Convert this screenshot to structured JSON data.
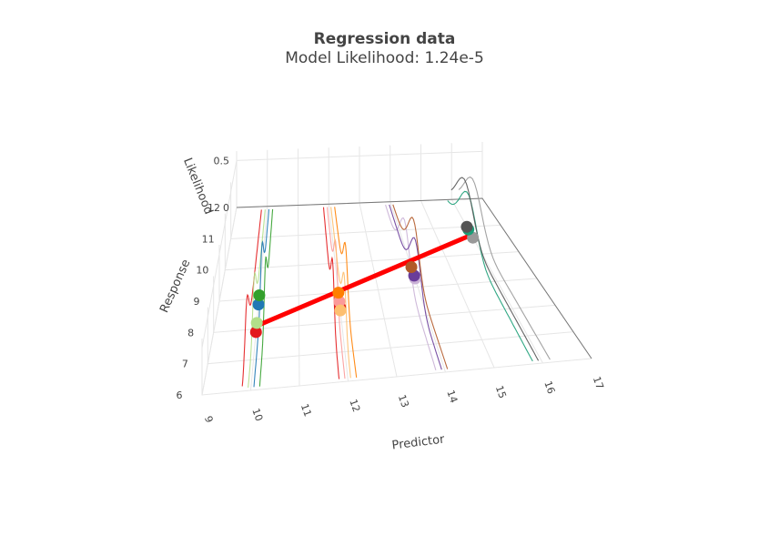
{
  "chart_data": {
    "type": "scatter",
    "title": "Regression data",
    "subtitle": "Model Likelihood: 1.24e-5",
    "xlabel": "Predictor",
    "ylabel": "Response",
    "zlabel": "Likelihood",
    "x_ticks": [
      "9",
      "10",
      "11",
      "12",
      "13",
      "14",
      "15",
      "16",
      "17"
    ],
    "y_ticks": [
      "6",
      "7",
      "8",
      "9",
      "10",
      "11",
      "12"
    ],
    "z_ticks": [
      "0",
      "0.5"
    ],
    "xlim": [
      9,
      17
    ],
    "ylim": [
      6,
      12
    ],
    "zlim": [
      0,
      0.6
    ],
    "regression_line": {
      "color": "#ff0000",
      "x": [
        10,
        16
      ],
      "y": [
        8.1,
        10.7
      ]
    },
    "points": [
      {
        "x": 10,
        "y": 7.9,
        "color": "#e31a1c"
      },
      {
        "x": 10,
        "y": 8.2,
        "color": "#b2df8a"
      },
      {
        "x": 10,
        "y": 8.8,
        "color": "#1f78b4"
      },
      {
        "x": 10,
        "y": 9.1,
        "color": "#33a02c"
      },
      {
        "x": 12,
        "y": 8.5,
        "color": "#e31a1c"
      },
      {
        "x": 12,
        "y": 8.7,
        "color": "#fb9a99"
      },
      {
        "x": 12,
        "y": 8.4,
        "color": "#fdbf6f"
      },
      {
        "x": 12,
        "y": 9.0,
        "color": "#ff7f00"
      },
      {
        "x": 14,
        "y": 9.3,
        "color": "#cab2d6"
      },
      {
        "x": 14,
        "y": 9.4,
        "color": "#6a3d9a"
      },
      {
        "x": 14,
        "y": 9.7,
        "color": "#b15928"
      },
      {
        "x": 16,
        "y": 10.6,
        "color": "#999999"
      },
      {
        "x": 16,
        "y": 10.9,
        "color": "#1b9e77"
      },
      {
        "x": 16,
        "y": 11.0,
        "color": "#555555"
      }
    ]
  }
}
